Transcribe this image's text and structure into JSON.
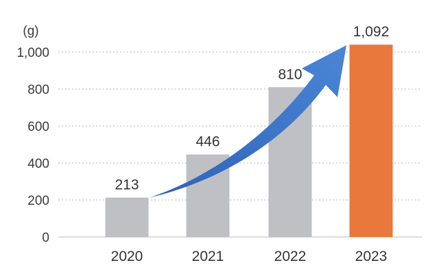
{
  "chart_data": {
    "type": "bar",
    "title": "",
    "xlabel": "",
    "ylabel": "(g)",
    "categories": [
      "2020",
      "2021",
      "2022",
      "2023"
    ],
    "values": [
      213,
      446,
      810,
      1092
    ],
    "data_labels": [
      "213",
      "446",
      "810",
      "1,092"
    ],
    "ylim": [
      0,
      1100
    ],
    "yticks": [
      0,
      200,
      400,
      600,
      800,
      1000
    ],
    "ytick_labels": [
      "0",
      "200",
      "400",
      "600",
      "800",
      "1,000"
    ],
    "grid": true,
    "legend": "none",
    "colors": {
      "default_bar": "#bfc0c4",
      "highlight_bar": "#e8783c",
      "arrow": "#3a72c4",
      "grid": "#b5b5b5"
    },
    "highlight_index": 3,
    "arrow": {
      "from_category": "2020",
      "to_category": "2023"
    }
  }
}
